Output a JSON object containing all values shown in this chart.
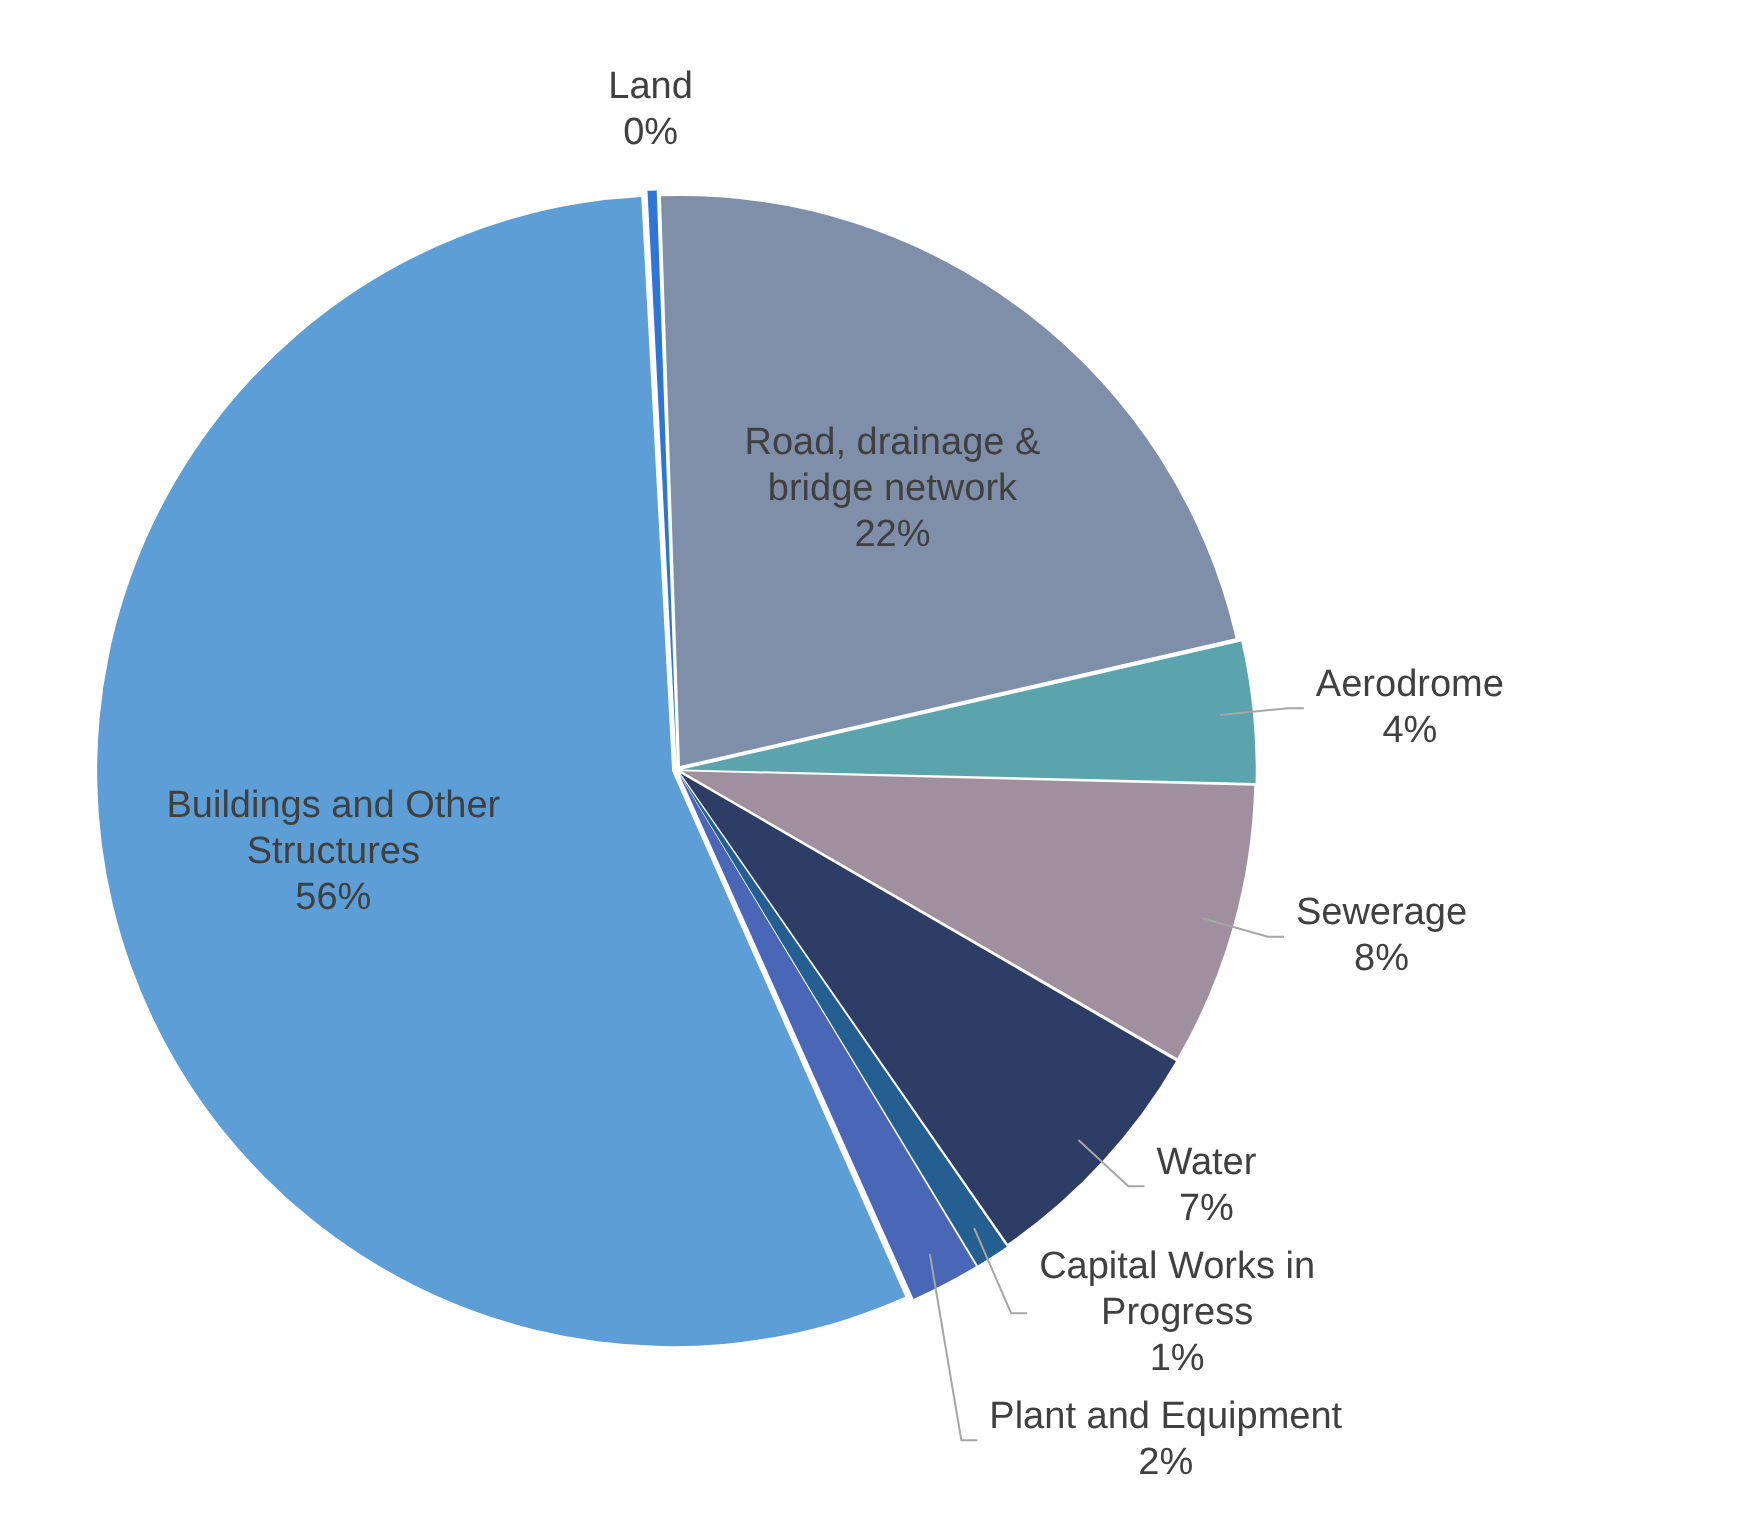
{
  "chart_data": {
    "type": "pie",
    "categories": [
      "Land",
      "Road, drainage & bridge network",
      "Aerodrome",
      "Sewerage",
      "Water",
      "Capital Works in Progress",
      "Plant and Equipment",
      "Buildings and Other Structures"
    ],
    "values": [
      0.3,
      22,
      4,
      8,
      7,
      1,
      2,
      56
    ],
    "value_labels": [
      "0%",
      "22%",
      "4%",
      "8%",
      "7%",
      "1%",
      "2%",
      "56%"
    ],
    "colors": [
      "#2e75d6",
      "#7f8fa9",
      "#5ba3ad",
      "#a0909f",
      "#2e3d66",
      "#255e91",
      "#4a67b7",
      "#5e9ed6"
    ],
    "legend": false
  }
}
